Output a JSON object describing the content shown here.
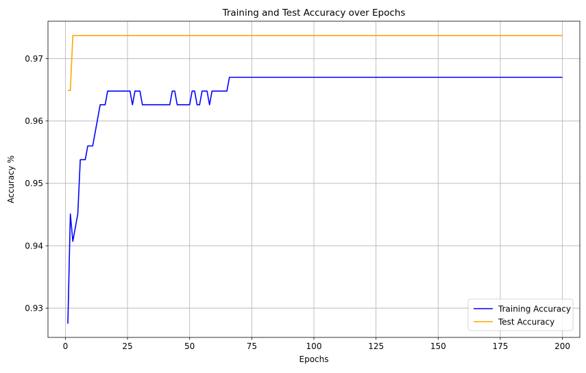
{
  "chart_data": {
    "type": "line",
    "title": "Training and Test Accuracy over Epochs",
    "xlabel": "Epochs",
    "ylabel": "Accuracy %",
    "xlim": [
      -7,
      207
    ],
    "ylim": [
      0.9253,
      0.976
    ],
    "xticks": [
      0,
      25,
      50,
      75,
      100,
      125,
      150,
      175,
      200
    ],
    "yticks": [
      0.93,
      0.94,
      0.95,
      0.96,
      0.97
    ],
    "ytick_labels": [
      "0.93",
      "0.94",
      "0.95",
      "0.96",
      "0.97"
    ],
    "grid": true,
    "legend_position": "lower-right",
    "series": [
      {
        "name": "Training Accuracy",
        "color": "#0000ff",
        "x": [
          1,
          2,
          3,
          5,
          6,
          8,
          9,
          11,
          12,
          14,
          16,
          17,
          26,
          27,
          28,
          30,
          31,
          42,
          43,
          44,
          45,
          50,
          51,
          52,
          53,
          54,
          55,
          57,
          58,
          59,
          65,
          66,
          200
        ],
        "y": [
          0.9275,
          0.9451,
          0.9407,
          0.9451,
          0.9538,
          0.9538,
          0.956,
          0.956,
          0.9582,
          0.9626,
          0.9626,
          0.9648,
          0.9648,
          0.9626,
          0.9648,
          0.9648,
          0.9626,
          0.9626,
          0.9648,
          0.9648,
          0.9626,
          0.9626,
          0.9648,
          0.9648,
          0.9626,
          0.9626,
          0.9648,
          0.9648,
          0.9626,
          0.9648,
          0.9648,
          0.967,
          0.967
        ]
      },
      {
        "name": "Test Accuracy",
        "color": "#ffa500",
        "x": [
          1,
          2,
          3,
          200
        ],
        "y": [
          0.9649,
          0.9649,
          0.9737,
          0.9737
        ]
      }
    ]
  }
}
